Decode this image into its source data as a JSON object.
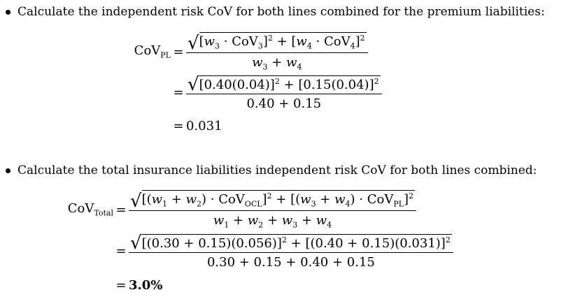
{
  "bullets": {
    "first": "Calculate the independent risk CoV for both lines combined for the premium liabilities:",
    "second": "Calculate the total insurance liabilities independent risk CoV for both lines combined:"
  },
  "eq1": {
    "lhs_base": "CoV",
    "lhs_sub": "PL",
    "eq": "=",
    "row1": {
      "num_a_open": "[",
      "w3": "w",
      "w3_sub": "3",
      "dot_cov3": " · CoV",
      "cov3_sub": "3",
      "close_a": "]",
      "sq_a": "2",
      "plus": " + [",
      "w4": "w",
      "w4_sub": "4",
      "dot_cov4": " · CoV",
      "cov4_sub": "4",
      "close_b": "]",
      "sq_b": "2",
      "den_w3": "w",
      "den_w3_sub": "3",
      "den_plus": " + ",
      "den_w4": "w",
      "den_w4_sub": "4"
    },
    "row2": {
      "num_a": "[0.40(0.04)]",
      "sq_a": "2",
      "plus": " + [0.15(0.04)]",
      "sq_b": "2",
      "den": "0.40 + 0.15"
    },
    "row3": {
      "result": "0.031"
    }
  },
  "eq2": {
    "lhs_base": "CoV",
    "lhs_sub": "Total",
    "eq": "=",
    "row1": {
      "open1": "[(",
      "w1": "w",
      "w1_sub": "1",
      "plus1": " + ",
      "w2": "w",
      "w2_sub": "2",
      "dot_cov_ocl": ") · CoV",
      "ocl_sub": "OCL",
      "close1": "]",
      "sq1": "2",
      "plus_mid": " + [(",
      "w3": "w",
      "w3_sub": "3",
      "plus2": " + ",
      "w4": "w",
      "w4_sub": "4",
      "dot_cov_pl": ") · CoV",
      "pl_sub": "PL",
      "close2": "]",
      "sq2": "2",
      "den_w1": "w",
      "den_w1_sub": "1",
      "den_p1": " + ",
      "den_w2": "w",
      "den_w2_sub": "2",
      "den_p2": " + ",
      "den_w3": "w",
      "den_w3_sub": "3",
      "den_p3": " + ",
      "den_w4": "w",
      "den_w4_sub": "4"
    },
    "row2": {
      "num_a": "[(0.30 + 0.15)(0.056)]",
      "sq_a": "2",
      "plus": " + [(0.40 + 0.15)(0.031)]",
      "sq_b": "2",
      "den": "0.30 + 0.15 + 0.40 + 0.15"
    },
    "row3": {
      "result": "3.0%"
    }
  }
}
